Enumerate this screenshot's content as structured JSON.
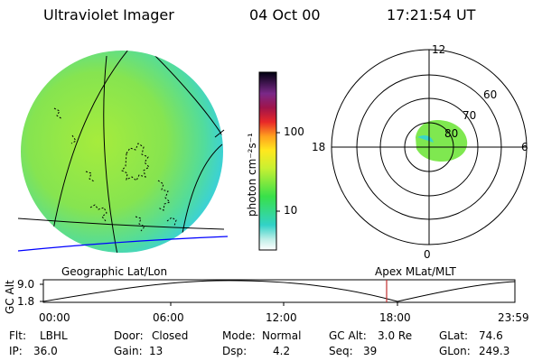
{
  "header": {
    "instrument": "Ultraviolet Imager",
    "date": "04 Oct 00",
    "time": "17:21:54 UT"
  },
  "colorbar": {
    "label": "photon cm⁻²s⁻¹",
    "ticks": [
      "100",
      "10"
    ]
  },
  "polar_plot": {
    "mlt_labels": [
      "12",
      "18",
      "6",
      "0"
    ],
    "lat_labels": [
      "60",
      "70",
      "80"
    ]
  },
  "panel_titles": {
    "left": "Geographic Lat/Lon",
    "right": "Apex MLat/MLT"
  },
  "altitude_chart": {
    "ylabel": "GC Alt",
    "yticks": [
      "9.0",
      "1.8"
    ],
    "xticks": [
      "00:00",
      "06:00",
      "12:00",
      "18:00",
      "23:59"
    ]
  },
  "status": {
    "flt_label": "Flt:",
    "flt_value": "LBHL",
    "ip_label": "IP:",
    "ip_value": "36.0",
    "door_label": "Door:",
    "door_value": "Closed",
    "gain_label": "Gain:",
    "gain_value": "13",
    "mode_label": "Mode:",
    "mode_value": "Normal",
    "dsp_label": "Dsp:",
    "dsp_value": "4.2",
    "gcalt_label": "GC Alt:",
    "gcalt_value": "3.0 Re",
    "seq_label": "Seq:",
    "seq_value": "39",
    "glat_label": "GLat:",
    "glat_value": "74.6",
    "glon_label": "GLon:",
    "glon_value": "249.3"
  },
  "colors": {
    "disk": "#8fe84a",
    "limb": "#46dcc8",
    "aurora": "#7fe850",
    "blue_line": "#0000ff",
    "marker": "#c03030"
  }
}
